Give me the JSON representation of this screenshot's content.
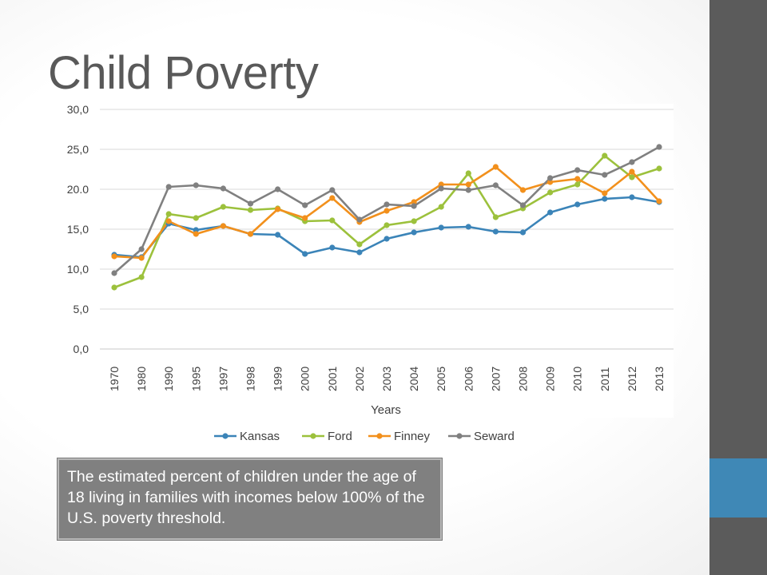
{
  "slide": {
    "title": "Child Poverty",
    "caption": "The estimated percent of children under the age of 18 living in families with incomes below 100% of the U.S. poverty threshold."
  },
  "colors": {
    "Kansas": "#3b84b8",
    "Ford": "#9cc13c",
    "Finney": "#f2901c",
    "Seward": "#808080",
    "side_bar": "#5b5b5b",
    "side_accent": "#3f88b6"
  },
  "chart_data": {
    "type": "line",
    "title": "",
    "xlabel": "Years",
    "ylabel": "",
    "ylim": [
      0,
      30
    ],
    "yticks": [
      "0,0",
      "5,0",
      "10,0",
      "15,0",
      "20.0",
      "25,0",
      "30,0"
    ],
    "categories": [
      "1970",
      "1980",
      "1990",
      "1995",
      "1997",
      "1998",
      "1999",
      "2000",
      "2001",
      "2002",
      "2003",
      "2004",
      "2005",
      "2006",
      "2007",
      "2008",
      "2009",
      "2010",
      "2011",
      "2012",
      "2013"
    ],
    "grid": true,
    "legend_position": "bottom",
    "series": [
      {
        "name": "Kansas",
        "values": [
          11.8,
          11.5,
          15.7,
          14.9,
          15.4,
          14.4,
          14.3,
          11.9,
          12.7,
          12.1,
          13.8,
          14.6,
          15.2,
          15.3,
          14.7,
          14.6,
          17.1,
          18.1,
          18.8,
          19.0,
          18.4
        ]
      },
      {
        "name": "Ford",
        "values": [
          7.7,
          9.0,
          16.9,
          16.4,
          17.8,
          17.4,
          17.6,
          16.0,
          16.1,
          13.1,
          15.5,
          16.0,
          17.8,
          22.0,
          16.5,
          17.6,
          19.6,
          20.6,
          24.2,
          21.5,
          22.6
        ]
      },
      {
        "name": "Finney",
        "values": [
          11.6,
          11.4,
          16.0,
          14.4,
          15.4,
          14.4,
          17.5,
          16.4,
          18.9,
          15.9,
          17.3,
          18.4,
          20.6,
          20.6,
          22.8,
          19.9,
          20.9,
          21.3,
          19.5,
          22.2,
          18.5
        ]
      },
      {
        "name": "Seward",
        "values": [
          9.5,
          12.5,
          20.3,
          20.5,
          20.1,
          18.2,
          20.0,
          18.0,
          19.9,
          16.2,
          18.1,
          17.9,
          20.1,
          19.9,
          20.5,
          18.0,
          21.4,
          22.4,
          21.8,
          23.4,
          25.3
        ]
      }
    ]
  }
}
